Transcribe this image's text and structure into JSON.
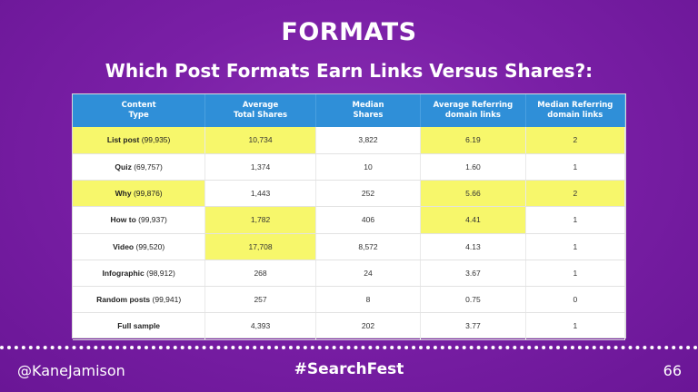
{
  "slide": {
    "title": "FORMATS",
    "subtitle": "Which Post Formats Earn Links Versus Shares?:"
  },
  "table": {
    "headers": [
      "Content\nType",
      "Average\nTotal Shares",
      "Median\nShares",
      "Average Referring\ndomain links",
      "Median Referring\ndomain links"
    ],
    "rows": [
      {
        "type": "List post",
        "count": "(99,935)",
        "avg_shares": "10,734",
        "median_shares": "3,822",
        "avg_ref": "6.19",
        "median_ref": "2"
      },
      {
        "type": "Quiz",
        "count": "(69,757)",
        "avg_shares": "1,374",
        "median_shares": "10",
        "avg_ref": "1.60",
        "median_ref": "1"
      },
      {
        "type": "Why",
        "count": "(99,876)",
        "avg_shares": "1,443",
        "median_shares": "252",
        "avg_ref": "5.66",
        "median_ref": "2"
      },
      {
        "type": "How to",
        "count": "(99,937)",
        "avg_shares": "1,782",
        "median_shares": "406",
        "avg_ref": "4.41",
        "median_ref": "1"
      },
      {
        "type": "Video",
        "count": "(99,520)",
        "avg_shares": "17,708",
        "median_shares": "8,572",
        "avg_ref": "4.13",
        "median_ref": "1"
      },
      {
        "type": "Infographic",
        "count": "(98,912)",
        "avg_shares": "268",
        "median_shares": "24",
        "avg_ref": "3.67",
        "median_ref": "1"
      },
      {
        "type": "Random posts",
        "count": "(99,941)",
        "avg_shares": "257",
        "median_shares": "8",
        "avg_ref": "0.75",
        "median_ref": "0"
      },
      {
        "type": "Full sample",
        "count": "",
        "avg_shares": "4,393",
        "median_shares": "202",
        "avg_ref": "3.77",
        "median_ref": "1"
      }
    ]
  },
  "footer": {
    "handle": "@KaneJamison",
    "hashtag": "#SearchFest",
    "page": "66"
  },
  "colors": {
    "background": "#7a1fa6",
    "header": "#2f8fd8",
    "highlight": "#f7f76b"
  }
}
